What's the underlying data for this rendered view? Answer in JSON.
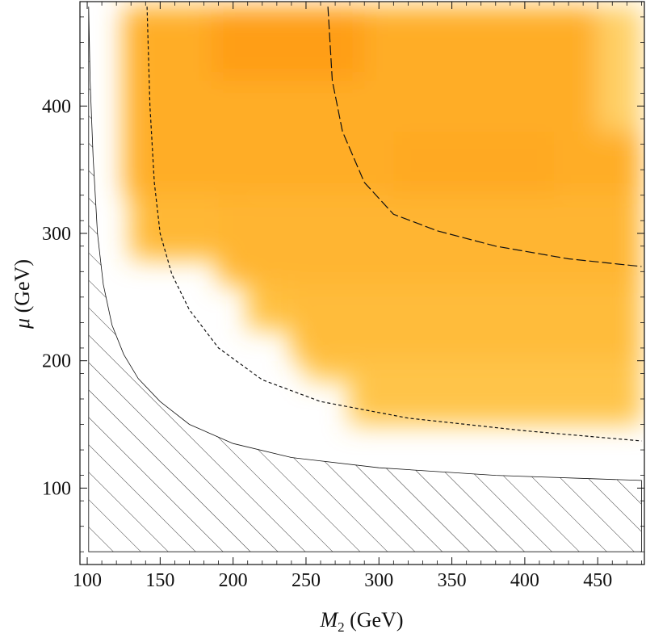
{
  "chart_data": {
    "type": "heatmap",
    "xlabel_symbol": "M",
    "xlabel_sub": "2",
    "xlabel_unit": " (GeV)",
    "ylabel_symbol": "μ",
    "ylabel_unit": " (GeV)",
    "xlim": [
      95,
      482
    ],
    "ylim": [
      40,
      482
    ],
    "x_ticks": [
      100,
      150,
      200,
      250,
      300,
      350,
      400,
      450
    ],
    "y_ticks": [
      100,
      200,
      300,
      400
    ],
    "colors": {
      "heat_low": "#ffe8a0",
      "heat_mid": "#ffc040",
      "heat_high": "#ff9a10",
      "line": "#111111"
    },
    "excluded_region_boundary": [
      [
        101,
        478
      ],
      [
        102,
        420
      ],
      [
        104,
        360
      ],
      [
        107,
        300
      ],
      [
        111,
        260
      ],
      [
        117,
        228
      ],
      [
        125,
        205
      ],
      [
        135,
        186
      ],
      [
        150,
        168
      ],
      [
        170,
        150
      ],
      [
        200,
        135
      ],
      [
        240,
        124
      ],
      [
        300,
        116
      ],
      [
        380,
        110
      ],
      [
        480,
        106
      ]
    ],
    "dashed_contour_short": [
      [
        141,
        478
      ],
      [
        143,
        400
      ],
      [
        146,
        340
      ],
      [
        150,
        300
      ],
      [
        158,
        268
      ],
      [
        170,
        240
      ],
      [
        190,
        210
      ],
      [
        220,
        185
      ],
      [
        260,
        168
      ],
      [
        320,
        155
      ],
      [
        400,
        145
      ],
      [
        480,
        137
      ]
    ],
    "dashed_contour_long": [
      [
        265,
        478
      ],
      [
        268,
        420
      ],
      [
        275,
        380
      ],
      [
        290,
        340
      ],
      [
        310,
        315
      ],
      [
        340,
        302
      ],
      [
        380,
        290
      ],
      [
        430,
        280
      ],
      [
        480,
        274
      ]
    ],
    "heat_cells": [
      {
        "x0": 125,
        "x1": 480,
        "y0": 330,
        "y1": 478,
        "v": 0.75
      },
      {
        "x0": 185,
        "x1": 290,
        "y0": 420,
        "y1": 478,
        "v": 0.95
      },
      {
        "x0": 310,
        "x1": 420,
        "y0": 290,
        "y1": 380,
        "v": 0.8
      },
      {
        "x0": 450,
        "x1": 480,
        "y0": 380,
        "y1": 478,
        "v": 0.3
      },
      {
        "x0": 130,
        "x1": 210,
        "y0": 280,
        "y1": 330,
        "v": 0.6
      },
      {
        "x0": 190,
        "x1": 480,
        "y0": 260,
        "y1": 330,
        "v": 0.65
      },
      {
        "x0": 240,
        "x1": 480,
        "y0": 200,
        "y1": 260,
        "v": 0.55
      },
      {
        "x0": 280,
        "x1": 480,
        "y0": 150,
        "y1": 200,
        "v": 0.45
      },
      {
        "x0": 210,
        "x1": 240,
        "y0": 225,
        "y1": 260,
        "v": 0.5
      },
      {
        "x0": 250,
        "x1": 280,
        "y0": 185,
        "y1": 200,
        "v": 0.45
      }
    ]
  }
}
